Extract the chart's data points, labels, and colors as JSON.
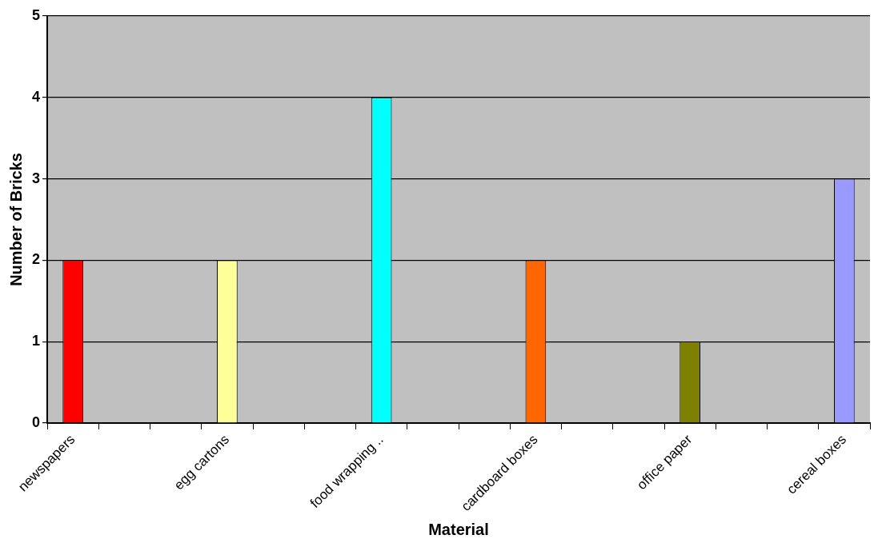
{
  "chart_data": {
    "type": "bar",
    "xlabel": "Material",
    "ylabel": "Number of Bricks",
    "categories": [
      "newspapers",
      null,
      null,
      "egg cartons",
      null,
      null,
      "food wrapping ..",
      null,
      null,
      "cardboard boxes",
      null,
      null,
      "office paper",
      null,
      null,
      "cereal boxes"
    ],
    "values": [
      2,
      null,
      null,
      2,
      null,
      null,
      4,
      null,
      null,
      2,
      null,
      null,
      1,
      null,
      null,
      3
    ],
    "colors": [
      "#ff0000",
      null,
      null,
      "#ffff99",
      null,
      null,
      "#00ffff",
      null,
      null,
      "#ff6600",
      null,
      null,
      "#808000",
      null,
      null,
      "#9999ff"
    ],
    "ylim": [
      0,
      5
    ],
    "yticks": [
      0,
      1,
      2,
      3,
      4,
      5
    ],
    "grid": "y",
    "legend": false
  }
}
